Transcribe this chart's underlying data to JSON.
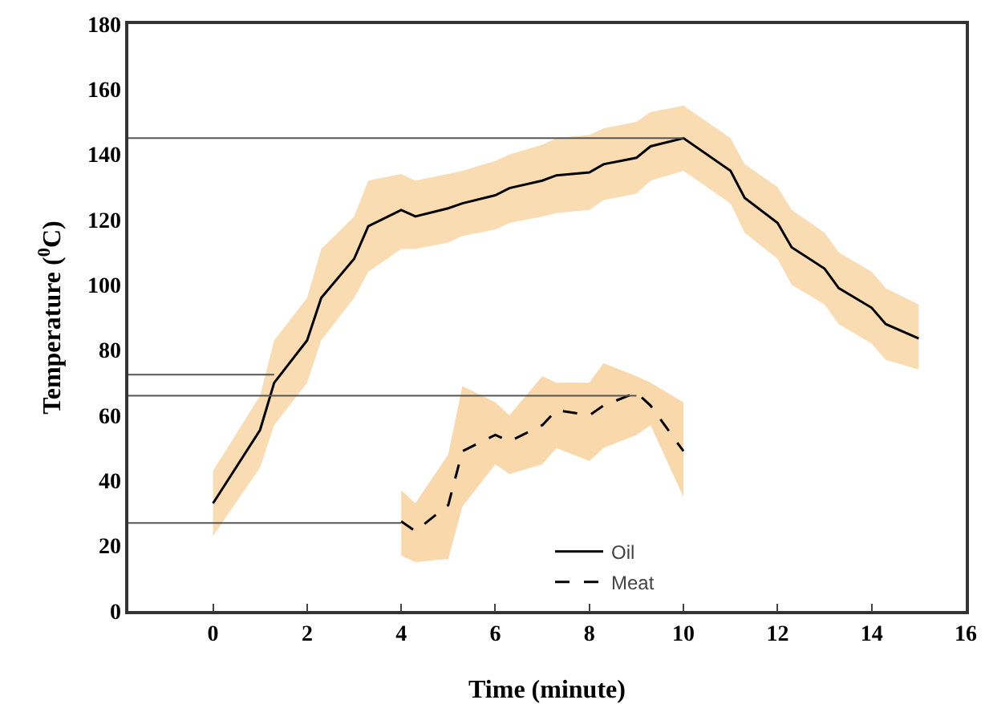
{
  "chart_data": {
    "type": "line",
    "xlabel": "Time (minute)",
    "ylabel": "Temperature ($^{0}$C)",
    "xlim": [
      -1.8,
      16
    ],
    "ylim": [
      0,
      180
    ],
    "xticks": [
      0,
      2,
      4,
      6,
      8,
      10,
      12,
      14,
      16
    ],
    "yticks": [
      0,
      20,
      40,
      60,
      80,
      100,
      120,
      140,
      160,
      180
    ],
    "grid": false,
    "legend": "bottom right",
    "marker": "none",
    "series": [
      {
        "name": "Oil",
        "color": "#000000",
        "line_style": "solid",
        "x": [
          0,
          1,
          1.3,
          2,
          2.3,
          3,
          3.3,
          4,
          4.3,
          5,
          5.3,
          6,
          6.3,
          7,
          7.3,
          8,
          8.3,
          9,
          9.3,
          10,
          11,
          11.3,
          12,
          12.3,
          13,
          13.3,
          14,
          14.3,
          15
        ],
        "values": [
          33,
          55.5,
          70,
          83,
          96,
          108,
          118,
          123,
          121,
          123.5,
          125,
          127.5,
          129.7,
          132,
          133.6,
          134.5,
          137,
          139,
          142.5,
          145,
          135,
          126.7,
          119,
          111.5,
          105,
          99,
          93,
          88,
          83.6
        ],
        "lower": [
          23,
          44,
          57,
          70,
          83,
          96,
          104,
          111,
          111,
          113,
          115,
          117,
          119,
          121,
          122,
          123,
          126,
          128,
          132,
          135,
          125,
          116,
          108,
          100,
          94,
          88,
          82,
          77,
          74
        ],
        "upper": [
          43,
          66,
          83,
          96,
          111,
          121,
          132,
          134,
          132,
          134,
          135,
          138,
          140,
          143,
          145,
          146,
          148,
          150,
          153,
          155,
          145,
          137,
          130,
          123,
          116,
          110,
          104,
          99,
          94
        ]
      },
      {
        "name": "Meat",
        "color": "#000000",
        "line_style": "dashed",
        "x": [
          4,
          4.3,
          5,
          5.3,
          6,
          6.3,
          7,
          7.3,
          8,
          8.3,
          9,
          9.3,
          10
        ],
        "values": [
          27.5,
          24.5,
          32.5,
          49,
          54,
          52,
          57,
          61.6,
          60,
          63,
          67,
          63,
          49
        ],
        "lower": [
          17,
          15,
          16,
          32,
          45,
          42,
          45,
          50,
          46,
          50,
          54,
          57,
          35
        ],
        "upper": [
          37,
          33,
          48,
          69,
          64,
          60,
          72,
          70,
          70,
          76,
          72,
          70,
          64
        ]
      },
      {
        "color": "#555555",
        "line_style": "solid",
        "x": [
          -1.8,
          10
        ],
        "values": [
          145,
          145
        ]
      },
      {
        "color": "#555555",
        "line_style": "solid",
        "x": [
          -1.8,
          1.3
        ],
        "values": [
          72.5,
          72.5
        ]
      },
      {
        "color": "#555555",
        "line_style": "solid",
        "x": [
          -1.8,
          9
        ],
        "values": [
          66,
          66
        ]
      },
      {
        "color": "#555555",
        "line_style": "solid",
        "x": [
          -1.8,
          4
        ],
        "values": [
          27,
          27
        ]
      }
    ]
  }
}
